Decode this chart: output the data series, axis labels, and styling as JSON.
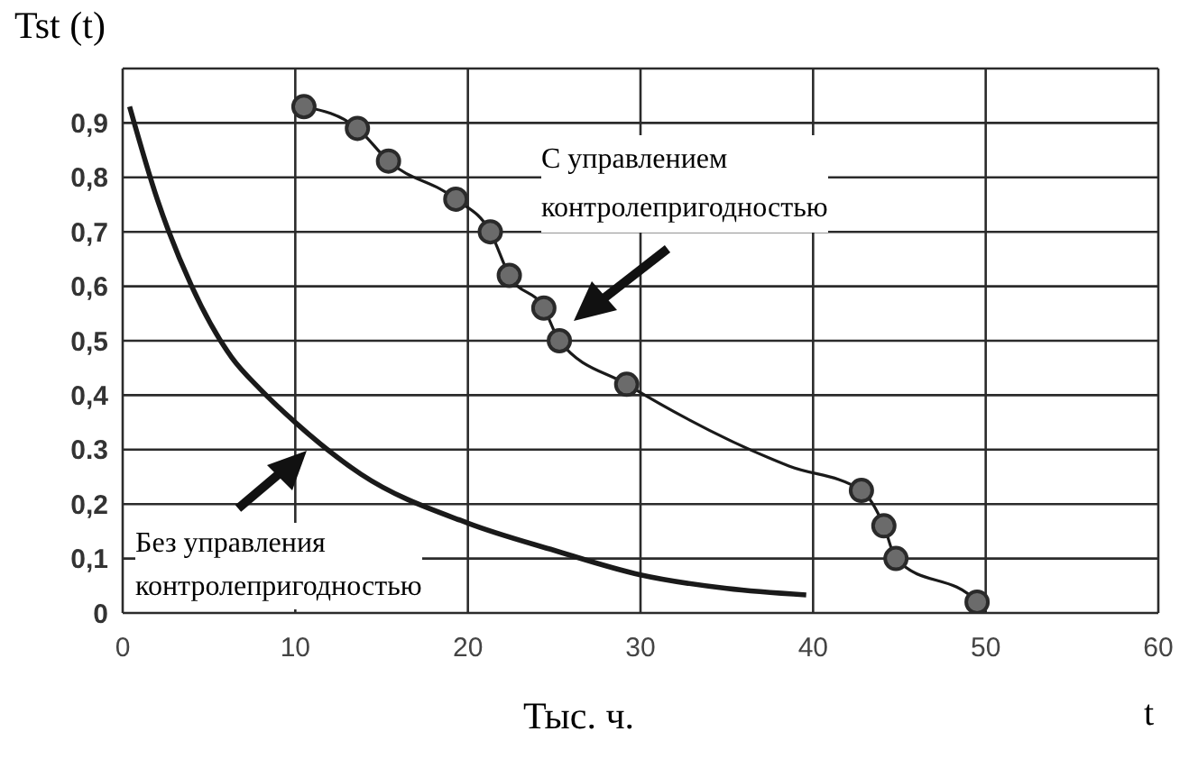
{
  "chart_data": {
    "type": "line",
    "ylabel": "Tst (t)",
    "xlabel": "Тыс. ч.",
    "annotations": [
      "С управлением\nконтролепригодностью",
      "Без управления\nконтролепригодностью",
      "t"
    ],
    "xlim": [
      0,
      60
    ],
    "xticks": [
      0,
      10,
      20,
      30,
      40,
      50,
      60
    ],
    "ylim": [
      0,
      1
    ],
    "yticks": [
      {
        "value": 0,
        "label": "0"
      },
      {
        "value": 0.1,
        "label": "0,1"
      },
      {
        "value": 0.2,
        "label": "0,2"
      },
      {
        "value": 0.3,
        "label": "0.3"
      },
      {
        "value": 0.4,
        "label": "0,4"
      },
      {
        "value": 0.5,
        "label": "0,5"
      },
      {
        "value": 0.6,
        "label": "0,6"
      },
      {
        "value": 0.7,
        "label": "0,7"
      },
      {
        "value": 0.8,
        "label": "0,8"
      },
      {
        "value": 0.9,
        "label": "0,9"
      },
      {
        "value": 1,
        "label": null
      }
    ],
    "grid": true,
    "line_style": "solid",
    "series": [
      {
        "marker": "none",
        "color": "#1a1a1a",
        "x": [
          0.4,
          2,
          4,
          6.3,
          8,
          10,
          13.8,
          20,
          25,
          30,
          35,
          39.6
        ],
        "values": [
          0.93,
          0.76,
          0.6,
          0.47,
          0.41,
          0.35,
          0.255,
          0.165,
          0.115,
          0.07,
          0.045,
          0.033
        ]
      },
      {
        "marker": "none",
        "color": "#1a1a1a",
        "x": [
          10.5,
          13.6,
          15.4,
          19.3,
          21.3,
          22.4,
          24.4,
          25.3,
          29.2,
          38.6,
          42.8,
          44.1,
          44.8,
          49.5,
          50
        ],
        "values": [
          0.93,
          0.89,
          0.83,
          0.76,
          0.7,
          0.62,
          0.56,
          0.5,
          0.42,
          0.27,
          0.225,
          0.16,
          0.1,
          0.02,
          0
        ]
      },
      {
        "type": "scatter",
        "marker": "circle",
        "color": "#6b6b6b",
        "x": [
          10.5,
          13.6,
          15.4,
          19.3,
          21.3,
          22.4,
          24.4,
          25.3,
          29.2,
          42.8,
          44.1,
          44.8,
          49.5
        ],
        "values": [
          0.93,
          0.89,
          0.83,
          0.76,
          0.7,
          0.62,
          0.56,
          0.5,
          0.42,
          0.225,
          0.16,
          0.1,
          0.02
        ]
      }
    ]
  }
}
